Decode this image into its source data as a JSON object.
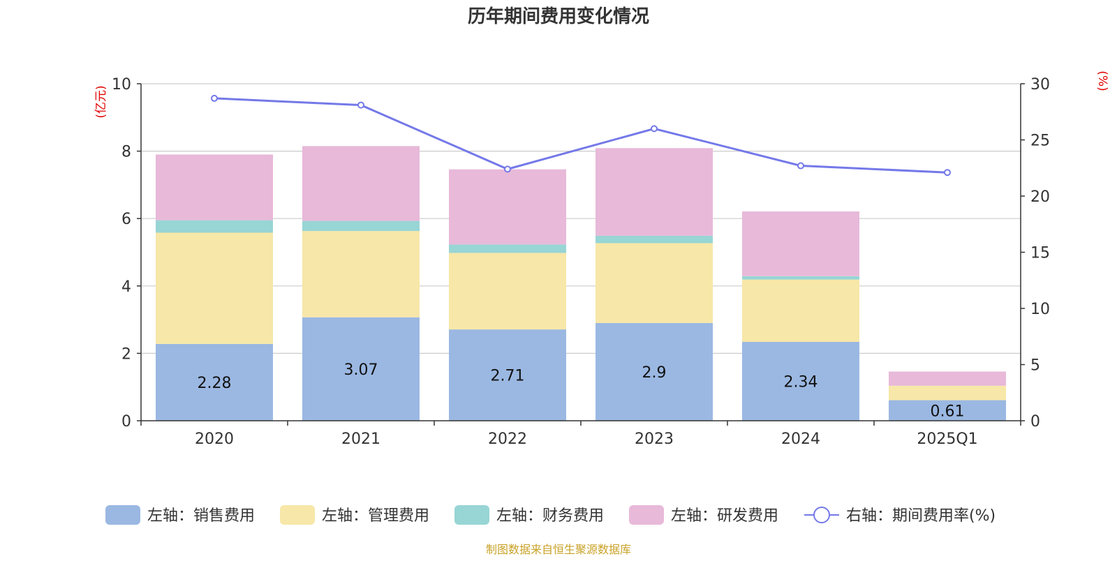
{
  "chart_data": {
    "type": "bar",
    "stacked": true,
    "title": "历年期间费用变化情况",
    "categories": [
      "2020",
      "2021",
      "2022",
      "2023",
      "2024",
      "2025Q1"
    ],
    "y_left": {
      "label": "(亿元)",
      "min": 0,
      "max": 10,
      "ticks": [
        0,
        2,
        4,
        6,
        8,
        10
      ]
    },
    "y_right": {
      "label": "(%)",
      "min": 0,
      "max": 30,
      "ticks": [
        0,
        5,
        10,
        15,
        20,
        25,
        30
      ]
    },
    "series": [
      {
        "name": "左轴：销售费用",
        "type": "bar",
        "axis": "left",
        "color": "#9bb8e2",
        "values": [
          2.28,
          3.07,
          2.71,
          2.9,
          2.34,
          0.61
        ],
        "labels": [
          "2.28",
          "3.07",
          "2.71",
          "2.9",
          "2.34",
          "0.61"
        ]
      },
      {
        "name": "左轴：管理费用",
        "type": "bar",
        "axis": "left",
        "color": "#f7e7a8",
        "values": [
          3.3,
          2.56,
          2.27,
          2.37,
          1.85,
          0.43
        ]
      },
      {
        "name": "左轴：财务费用",
        "type": "bar",
        "axis": "left",
        "color": "#98d5d5",
        "values": [
          0.37,
          0.3,
          0.25,
          0.22,
          0.1,
          0.0
        ]
      },
      {
        "name": "左轴：研发费用",
        "type": "bar",
        "axis": "left",
        "color": "#e8b9d9",
        "values": [
          1.95,
          2.22,
          2.23,
          2.6,
          1.92,
          0.42
        ]
      },
      {
        "name": "右轴：期间费用率(%)",
        "type": "line",
        "axis": "right",
        "color": "#7479e8",
        "values": [
          28.7,
          28.1,
          22.4,
          26.0,
          22.7,
          22.1
        ]
      }
    ],
    "legend_position": "bottom",
    "grid": true
  },
  "source_note": "制图数据来自恒生聚源数据库",
  "colors": {
    "title": "#333333",
    "axis_label": "#e00000",
    "tick": "#333333",
    "grid": "#cccccc",
    "source": "#c9a227"
  }
}
